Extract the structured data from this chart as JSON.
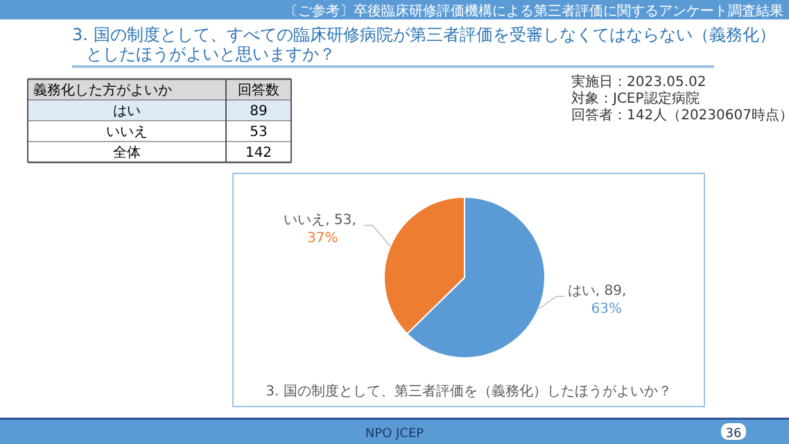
{
  "chart_data": {
    "type": "pie",
    "title": "3.  国の制度として、すべての臨床研修病院が第三者評価を受審しなくてはならない（義務化）としたほうがよいと思いますか？",
    "subtitle": "3.  国の制度として、第三者評価を（義務化）したほうがよいか？",
    "categories": [
      "はい",
      "いいえ"
    ],
    "values": [
      89,
      53
    ],
    "colors": [
      "#5b9bd5",
      "#ed7d31"
    ],
    "value_labels": [
      ", 89,",
      ", 53,"
    ],
    "annotations": [
      "〔ご参考〕卒後臨床研修評価機構による第三者評価に関するアンケート調査結果",
      "実施日：2023.05.02",
      "対象：JCEP認定病院",
      "回答者：142人（20230607時点）",
      "義務化した方がよいか",
      "回答数",
      "全体",
      "142",
      "NPO JCEP",
      "36",
      "はい",
      "89",
      "いいえ",
      "53",
      {
        "text": "63%",
        "x": "はい"
      },
      {
        "text": "37%",
        "x": "いいえ"
      }
    ]
  }
}
